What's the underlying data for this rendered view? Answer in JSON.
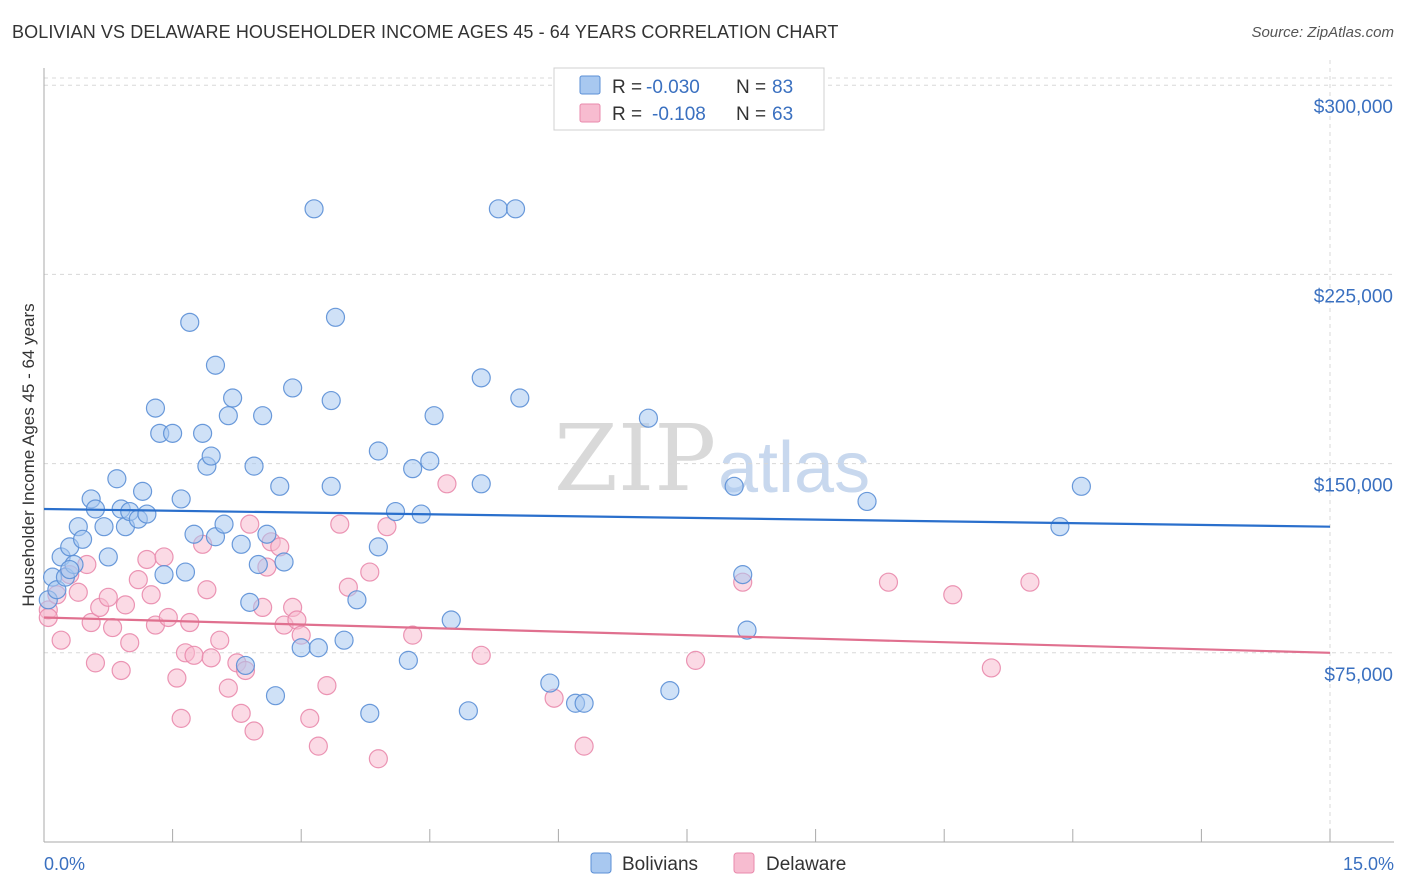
{
  "header": {
    "title": "BOLIVIAN VS DELAWARE HOUSEHOLDER INCOME AGES 45 - 64 YEARS CORRELATION CHART",
    "source": "Source: ZipAtlas.com"
  },
  "watermark": {
    "zip": "ZIP",
    "atlas": "atlas"
  },
  "colors": {
    "blue_fill": "#a8c8f0",
    "blue_stroke": "#5b8fd6",
    "blue_line": "#2a6fcc",
    "pink_fill": "#f7bcd0",
    "pink_stroke": "#e98aac",
    "pink_line": "#e0708f",
    "grid": "#d8d8d8",
    "tick_text": "#3a70c0"
  },
  "legend": {
    "rows": [
      {
        "r_label": "R =",
        "r_value": "-0.030",
        "n_label": "N =",
        "n_value": "83",
        "series": "Bolivians"
      },
      {
        "r_label": "R =",
        "r_value": "-0.108",
        "n_label": "N =",
        "n_value": "63",
        "series": "Delaware"
      }
    ]
  },
  "chart_data": {
    "type": "scatter",
    "title": "BOLIVIAN VS DELAWARE HOUSEHOLDER INCOME AGES 45 - 64 YEARS CORRELATION CHART",
    "xlabel": "",
    "ylabel": "Householder Income Ages 45 - 64 years",
    "xlim": [
      0,
      15
    ],
    "ylim": [
      0,
      310000
    ],
    "x_tick_labels": [
      "0.0%",
      "15.0%"
    ],
    "y_ticks": [
      {
        "value": 75000,
        "label": "$75,000"
      },
      {
        "value": 150000,
        "label": "$150,000"
      },
      {
        "value": 225000,
        "label": "$225,000"
      },
      {
        "value": 300000,
        "label": "$300,000"
      }
    ],
    "series": [
      {
        "name": "Bolivians",
        "color": "#a8c8f0",
        "trend": {
          "x0": 0,
          "y0": 132000,
          "x1": 15,
          "y1": 125000
        },
        "points": [
          [
            0.05,
            96000
          ],
          [
            0.1,
            105000
          ],
          [
            0.15,
            100000
          ],
          [
            0.2,
            113000
          ],
          [
            0.25,
            105000
          ],
          [
            0.3,
            117000
          ],
          [
            0.35,
            110000
          ],
          [
            0.4,
            125000
          ],
          [
            0.45,
            120000
          ],
          [
            0.55,
            136000
          ],
          [
            0.6,
            132000
          ],
          [
            0.7,
            125000
          ],
          [
            0.75,
            113000
          ],
          [
            0.85,
            144000
          ],
          [
            0.9,
            132000
          ],
          [
            0.95,
            125000
          ],
          [
            1.0,
            131000
          ],
          [
            1.1,
            128000
          ],
          [
            1.15,
            139000
          ],
          [
            1.2,
            130000
          ],
          [
            1.3,
            172000
          ],
          [
            1.35,
            162000
          ],
          [
            1.4,
            106000
          ],
          [
            1.5,
            162000
          ],
          [
            1.6,
            136000
          ],
          [
            1.65,
            107000
          ],
          [
            1.7,
            206000
          ],
          [
            1.75,
            122000
          ],
          [
            1.85,
            162000
          ],
          [
            1.9,
            149000
          ],
          [
            1.95,
            153000
          ],
          [
            2.0,
            121000
          ],
          [
            2.0,
            189000
          ],
          [
            2.1,
            126000
          ],
          [
            2.15,
            169000
          ],
          [
            2.2,
            176000
          ],
          [
            2.3,
            118000
          ],
          [
            2.35,
            70000
          ],
          [
            2.4,
            95000
          ],
          [
            2.45,
            149000
          ],
          [
            2.5,
            110000
          ],
          [
            2.55,
            169000
          ],
          [
            2.6,
            122000
          ],
          [
            2.7,
            58000
          ],
          [
            2.75,
            141000
          ],
          [
            2.8,
            111000
          ],
          [
            2.9,
            180000
          ],
          [
            3.0,
            77000
          ],
          [
            3.15,
            251000
          ],
          [
            3.2,
            77000
          ],
          [
            3.35,
            141000
          ],
          [
            3.4,
            208000
          ],
          [
            3.35,
            175000
          ],
          [
            3.5,
            80000
          ],
          [
            3.65,
            96000
          ],
          [
            3.8,
            51000
          ],
          [
            3.9,
            155000
          ],
          [
            3.9,
            117000
          ],
          [
            4.1,
            131000
          ],
          [
            4.25,
            72000
          ],
          [
            4.3,
            148000
          ],
          [
            4.4,
            130000
          ],
          [
            4.5,
            151000
          ],
          [
            4.55,
            169000
          ],
          [
            4.75,
            88000
          ],
          [
            4.95,
            52000
          ],
          [
            5.1,
            184000
          ],
          [
            5.1,
            142000
          ],
          [
            5.3,
            251000
          ],
          [
            5.5,
            251000
          ],
          [
            5.55,
            176000
          ],
          [
            5.9,
            63000
          ],
          [
            6.2,
            55000
          ],
          [
            6.3,
            55000
          ],
          [
            7.05,
            168000
          ],
          [
            7.3,
            60000
          ],
          [
            8.05,
            141000
          ],
          [
            8.15,
            106000
          ],
          [
            8.2,
            84000
          ],
          [
            9.6,
            135000
          ],
          [
            11.85,
            125000
          ],
          [
            12.1,
            141000
          ],
          [
            0.3,
            108000
          ]
        ]
      },
      {
        "name": "Delaware",
        "color": "#f7bcd0",
        "trend": {
          "x0": 0,
          "y0": 89000,
          "x1": 15,
          "y1": 75000
        },
        "points": [
          [
            0.05,
            92000
          ],
          [
            0.15,
            98000
          ],
          [
            0.2,
            80000
          ],
          [
            0.3,
            106000
          ],
          [
            0.4,
            99000
          ],
          [
            0.5,
            110000
          ],
          [
            0.55,
            87000
          ],
          [
            0.65,
            93000
          ],
          [
            0.75,
            97000
          ],
          [
            0.8,
            85000
          ],
          [
            0.9,
            68000
          ],
          [
            0.95,
            94000
          ],
          [
            1.0,
            79000
          ],
          [
            1.1,
            104000
          ],
          [
            1.2,
            112000
          ],
          [
            1.3,
            86000
          ],
          [
            1.4,
            113000
          ],
          [
            1.45,
            89000
          ],
          [
            1.55,
            65000
          ],
          [
            1.6,
            49000
          ],
          [
            1.65,
            75000
          ],
          [
            1.7,
            87000
          ],
          [
            1.75,
            74000
          ],
          [
            1.85,
            118000
          ],
          [
            1.9,
            100000
          ],
          [
            1.95,
            73000
          ],
          [
            2.05,
            80000
          ],
          [
            2.15,
            61000
          ],
          [
            2.25,
            71000
          ],
          [
            2.3,
            51000
          ],
          [
            2.35,
            68000
          ],
          [
            2.4,
            126000
          ],
          [
            2.45,
            44000
          ],
          [
            2.55,
            93000
          ],
          [
            2.6,
            109000
          ],
          [
            2.65,
            119000
          ],
          [
            2.75,
            117000
          ],
          [
            2.8,
            86000
          ],
          [
            2.9,
            93000
          ],
          [
            2.95,
            88000
          ],
          [
            3.0,
            82000
          ],
          [
            3.1,
            49000
          ],
          [
            3.2,
            38000
          ],
          [
            3.3,
            62000
          ],
          [
            3.45,
            126000
          ],
          [
            3.55,
            101000
          ],
          [
            3.8,
            107000
          ],
          [
            3.9,
            33000
          ],
          [
            4.0,
            125000
          ],
          [
            4.3,
            82000
          ],
          [
            4.7,
            142000
          ],
          [
            5.1,
            74000
          ],
          [
            5.95,
            57000
          ],
          [
            6.3,
            38000
          ],
          [
            7.6,
            72000
          ],
          [
            8.15,
            103000
          ],
          [
            9.85,
            103000
          ],
          [
            10.6,
            98000
          ],
          [
            11.05,
            69000
          ],
          [
            11.5,
            103000
          ],
          [
            0.6,
            71000
          ],
          [
            1.25,
            98000
          ],
          [
            0.05,
            89000
          ]
        ]
      }
    ]
  },
  "bottom_legend": [
    {
      "label": "Bolivians"
    },
    {
      "label": "Delaware"
    }
  ]
}
